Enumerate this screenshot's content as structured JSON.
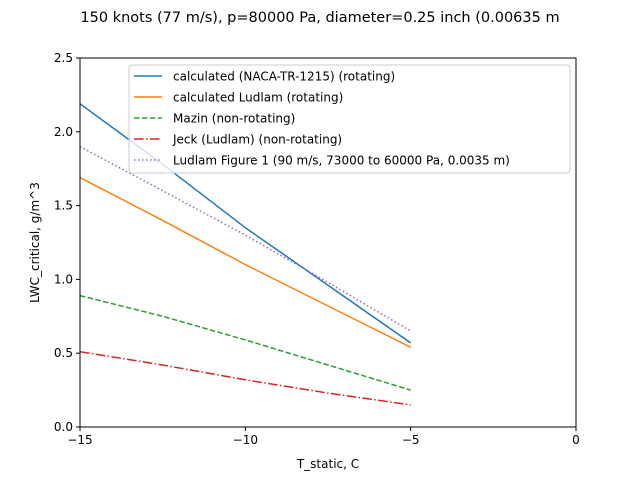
{
  "chart_data": {
    "type": "line",
    "title": "150 knots (77 m/s), p=80000 Pa, diameter=0.25 inch (0.00635 m",
    "xlabel": "T_static, C",
    "ylabel": "LWC_critical, g/m^3",
    "xlim": [
      -15,
      0
    ],
    "ylim": [
      0,
      2.5
    ],
    "xticks": [
      -15,
      -10,
      -5,
      0
    ],
    "xtick_labels": [
      "−15",
      "−10",
      "−5",
      "0"
    ],
    "yticks": [
      0.0,
      0.5,
      1.0,
      1.5,
      2.0,
      2.5
    ],
    "ytick_labels": [
      "0.0",
      "0.5",
      "1.0",
      "1.5",
      "2.0",
      "2.5"
    ],
    "grid": false,
    "legend_position": "top-right",
    "series": [
      {
        "name": "calculated (NACA-TR-1215) (rotating)",
        "color": "#1f77b4",
        "dash": "solid",
        "x": [
          -15,
          -12.5,
          -10,
          -7.5,
          -5
        ],
        "y": [
          2.19,
          1.78,
          1.35,
          0.96,
          0.57
        ]
      },
      {
        "name": "calculated Ludlam (rotating)",
        "color": "#ff7f0e",
        "dash": "solid",
        "x": [
          -15,
          -12.5,
          -10,
          -7.5,
          -5
        ],
        "y": [
          1.69,
          1.4,
          1.1,
          0.82,
          0.54
        ]
      },
      {
        "name": "Mazin (non-rotating)",
        "color": "#2ca02c",
        "dash": "dashed",
        "x": [
          -15,
          -12.5,
          -10,
          -7.5,
          -5
        ],
        "y": [
          0.89,
          0.75,
          0.59,
          0.42,
          0.25
        ]
      },
      {
        "name": "Jeck (Ludlam) (non-rotating)",
        "color": "#d62728",
        "dash": "dashdot",
        "x": [
          -15,
          -12.5,
          -10,
          -7.5,
          -5
        ],
        "y": [
          0.51,
          0.42,
          0.32,
          0.23,
          0.15
        ]
      },
      {
        "name": "Ludlam Figure 1 (90 m/s, 73000 to 60000 Pa, 0.0035 m)",
        "color": "#9467bd",
        "dash": "dotted",
        "x": [
          -15,
          -12.5,
          -10,
          -7.5,
          -5
        ],
        "y": [
          1.9,
          1.6,
          1.3,
          0.98,
          0.65
        ]
      }
    ]
  }
}
